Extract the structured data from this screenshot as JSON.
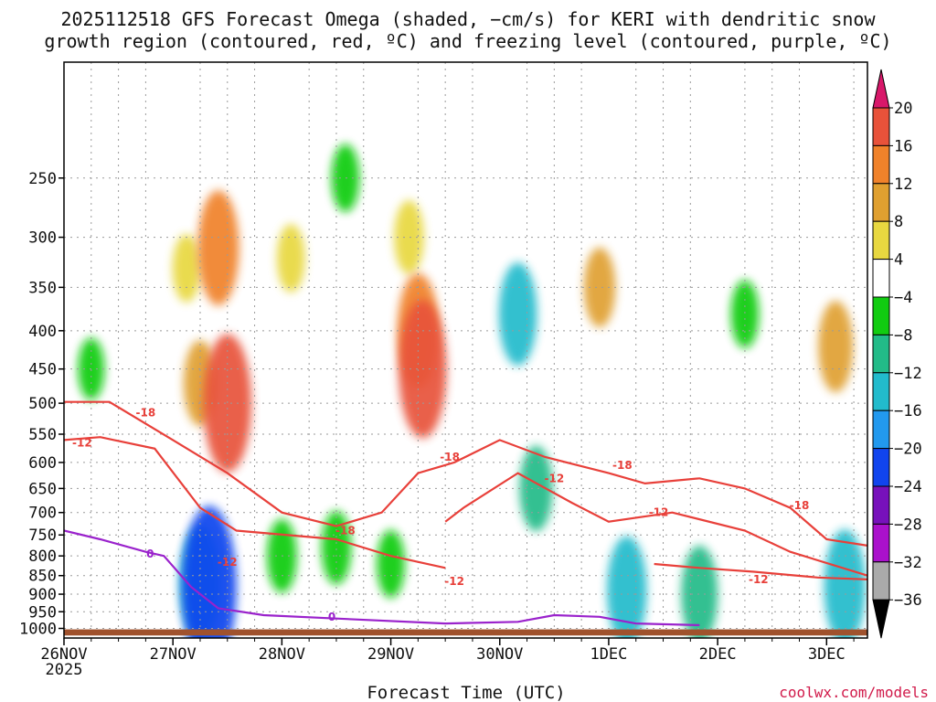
{
  "title": {
    "line1": "2025112518 GFS Forecast Omega (shaded, −cm/s) for KERI with dendritic snow",
    "line2": "growth region (contoured, red, ºC) and freezing level (contoured, purple, ºC)"
  },
  "credit": "coolwx.com/models",
  "chart_data": {
    "type": "heatmap",
    "xlabel": "Forecast Time (UTC)",
    "ylabel": "",
    "x_ticks": [
      "26NOV",
      "27NOV",
      "28NOV",
      "29NOV",
      "30NOV",
      "1DEC",
      "2DEC",
      "3DEC"
    ],
    "x_first_year": "2025",
    "x_range_hours": [
      0,
      177
    ],
    "y_scale": "log-pressure",
    "y_range_hpa": [
      1030,
      175
    ],
    "y_ticks": [
      250,
      300,
      350,
      400,
      450,
      500,
      550,
      600,
      650,
      700,
      750,
      800,
      850,
      900,
      950,
      1000
    ],
    "grid": true,
    "colorbar": {
      "labels": [
        "20",
        "16",
        "12",
        "8",
        "4",
        "−4",
        "−8",
        "−12",
        "−16",
        "−20",
        "−24",
        "−28",
        "−32",
        "−36"
      ],
      "colors": [
        "#d8186a",
        "#e8523a",
        "#f0822a",
        "#e0a030",
        "#e8d840",
        "#ffffff",
        "#11cc11",
        "#22bb88",
        "#22bbcc",
        "#2299ee",
        "#1144ee",
        "#7711bb",
        "#aa11cc",
        "#aaaaaa",
        "#000000"
      ]
    },
    "omega_blobs": [
      {
        "t": 27,
        "p": 330,
        "value": 6
      },
      {
        "t": 30,
        "p": 470,
        "value": 9
      },
      {
        "t": 34,
        "p": 310,
        "value": 14
      },
      {
        "t": 36,
        "p": 500,
        "value": 18
      },
      {
        "t": 50,
        "p": 320,
        "value": 6
      },
      {
        "t": 76,
        "p": 300,
        "value": 7
      },
      {
        "t": 78,
        "p": 400,
        "value": 14
      },
      {
        "t": 79,
        "p": 450,
        "value": 18
      },
      {
        "t": 118,
        "p": 350,
        "value": 8
      },
      {
        "t": 170,
        "p": 420,
        "value": 10
      },
      {
        "t": 30,
        "p": 870,
        "value": -14
      },
      {
        "t": 32,
        "p": 880,
        "value": -22
      },
      {
        "t": 48,
        "p": 800,
        "value": -7
      },
      {
        "t": 60,
        "p": 780,
        "value": -7
      },
      {
        "t": 72,
        "p": 820,
        "value": -6
      },
      {
        "t": 100,
        "p": 380,
        "value": -12
      },
      {
        "t": 104,
        "p": 650,
        "value": -9
      },
      {
        "t": 124,
        "p": 890,
        "value": -13
      },
      {
        "t": 140,
        "p": 900,
        "value": -11
      },
      {
        "t": 172,
        "p": 880,
        "value": -14
      },
      {
        "t": 6,
        "p": 450,
        "value": -5
      },
      {
        "t": 62,
        "p": 250,
        "value": -6
      },
      {
        "t": 150,
        "p": 380,
        "value": -6
      }
    ],
    "dgz_contours": [
      {
        "label": "-12",
        "points": [
          [
            0,
            560
          ],
          [
            8,
            555
          ],
          [
            20,
            575
          ],
          [
            30,
            690
          ],
          [
            38,
            740
          ],
          [
            60,
            760
          ],
          [
            72,
            800
          ],
          [
            84,
            830
          ]
        ]
      },
      {
        "label": "-18",
        "points": [
          [
            0,
            498
          ],
          [
            10,
            498
          ],
          [
            24,
            560
          ],
          [
            36,
            620
          ],
          [
            48,
            700
          ],
          [
            60,
            730
          ],
          [
            70,
            700
          ],
          [
            78,
            620
          ],
          [
            86,
            600
          ],
          [
            96,
            560
          ],
          [
            106,
            590
          ],
          [
            120,
            620
          ],
          [
            128,
            640
          ],
          [
            140,
            630
          ],
          [
            150,
            650
          ],
          [
            160,
            690
          ],
          [
            168,
            760
          ],
          [
            177,
            775
          ]
        ]
      },
      {
        "label": "-12",
        "points": [
          [
            84,
            720
          ],
          [
            88,
            690
          ],
          [
            100,
            620
          ],
          [
            112,
            680
          ],
          [
            120,
            720
          ],
          [
            134,
            700
          ],
          [
            150,
            740
          ],
          [
            160,
            790
          ],
          [
            177,
            850
          ]
        ]
      },
      {
        "label": "-12",
        "points": [
          [
            130,
            820
          ],
          [
            140,
            830
          ],
          [
            152,
            840
          ],
          [
            166,
            855
          ],
          [
            177,
            860
          ]
        ]
      }
    ],
    "freezing_level": {
      "label": "0",
      "points": [
        [
          0,
          740
        ],
        [
          8,
          760
        ],
        [
          18,
          790
        ],
        [
          22,
          800
        ],
        [
          28,
          880
        ],
        [
          34,
          940
        ],
        [
          44,
          960
        ],
        [
          60,
          970
        ],
        [
          84,
          985
        ],
        [
          100,
          980
        ],
        [
          108,
          960
        ],
        [
          118,
          965
        ],
        [
          126,
          985
        ],
        [
          140,
          990
        ]
      ]
    },
    "contour_labels": [
      {
        "text": "-18",
        "t": 18,
        "p": 515,
        "color": "#e8403a"
      },
      {
        "text": "-12",
        "t": 4,
        "p": 565,
        "color": "#e8403a"
      },
      {
        "text": "-12",
        "t": 36,
        "p": 815,
        "color": "#e8403a"
      },
      {
        "text": "-18",
        "t": 62,
        "p": 740,
        "color": "#e8403a"
      },
      {
        "text": "-18",
        "t": 85,
        "p": 590,
        "color": "#e8403a"
      },
      {
        "text": "-12",
        "t": 86,
        "p": 865,
        "color": "#e8403a"
      },
      {
        "text": "-12",
        "t": 108,
        "p": 630,
        "color": "#e8403a"
      },
      {
        "text": "-18",
        "t": 123,
        "p": 605,
        "color": "#e8403a"
      },
      {
        "text": "-12",
        "t": 131,
        "p": 700,
        "color": "#e8403a"
      },
      {
        "text": "-12",
        "t": 153,
        "p": 860,
        "color": "#e8403a"
      },
      {
        "text": "-18",
        "t": 162,
        "p": 685,
        "color": "#e8403a"
      },
      {
        "text": "0",
        "t": 19,
        "p": 795,
        "color": "#9a22cc"
      },
      {
        "text": "0",
        "t": 59,
        "p": 965,
        "color": "#9a22cc"
      }
    ],
    "terrain_color": "#a0522d"
  }
}
